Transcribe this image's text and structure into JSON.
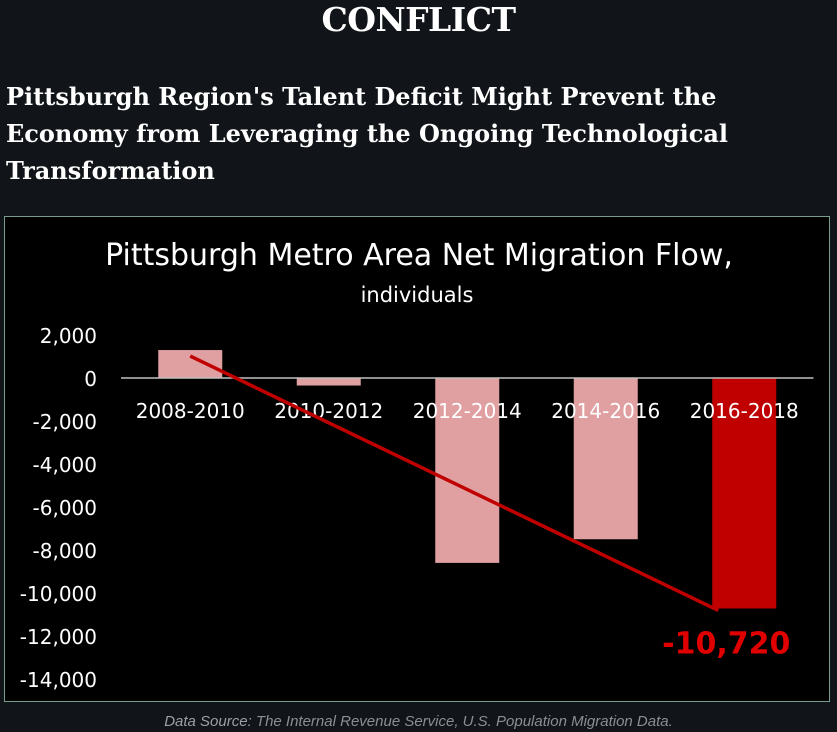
{
  "page": {
    "heading": "CONFLICT",
    "subheading": "Pittsburgh Region's Talent Deficit Might Prevent the Economy from Leveraging the Ongoing Technological Transformation",
    "source_label": "Data Source:",
    "source_text": " The Internal Revenue Service, U.S. Population Migration Data."
  },
  "chart_data": {
    "type": "bar",
    "title": "Pittsburgh Metro Area Net Migration Flow,",
    "subtitle": "individuals",
    "xlabel": "",
    "ylabel": "",
    "categories": [
      "2008-2010",
      "2010-2012",
      "2012-2014",
      "2014-2016",
      "2016-2018"
    ],
    "values": [
      1300,
      -350,
      -8600,
      -7500,
      -10720
    ],
    "y_ticks": [
      "2,000",
      "0",
      "-2,000",
      "-4,000",
      "-6,000",
      "-8,000",
      "-10,000",
      "-12,000",
      "-14,000"
    ],
    "ylim": [
      -14000,
      2000
    ],
    "grid": false,
    "legend": "none",
    "trendline": true,
    "highlight_label": "-10,720",
    "colors": {
      "bar": "#e0a0a2",
      "highlight_bar": "#c00000",
      "trendline": "#c00000",
      "highlight_label": "#e00000",
      "axis": "#bfbfbf"
    }
  }
}
